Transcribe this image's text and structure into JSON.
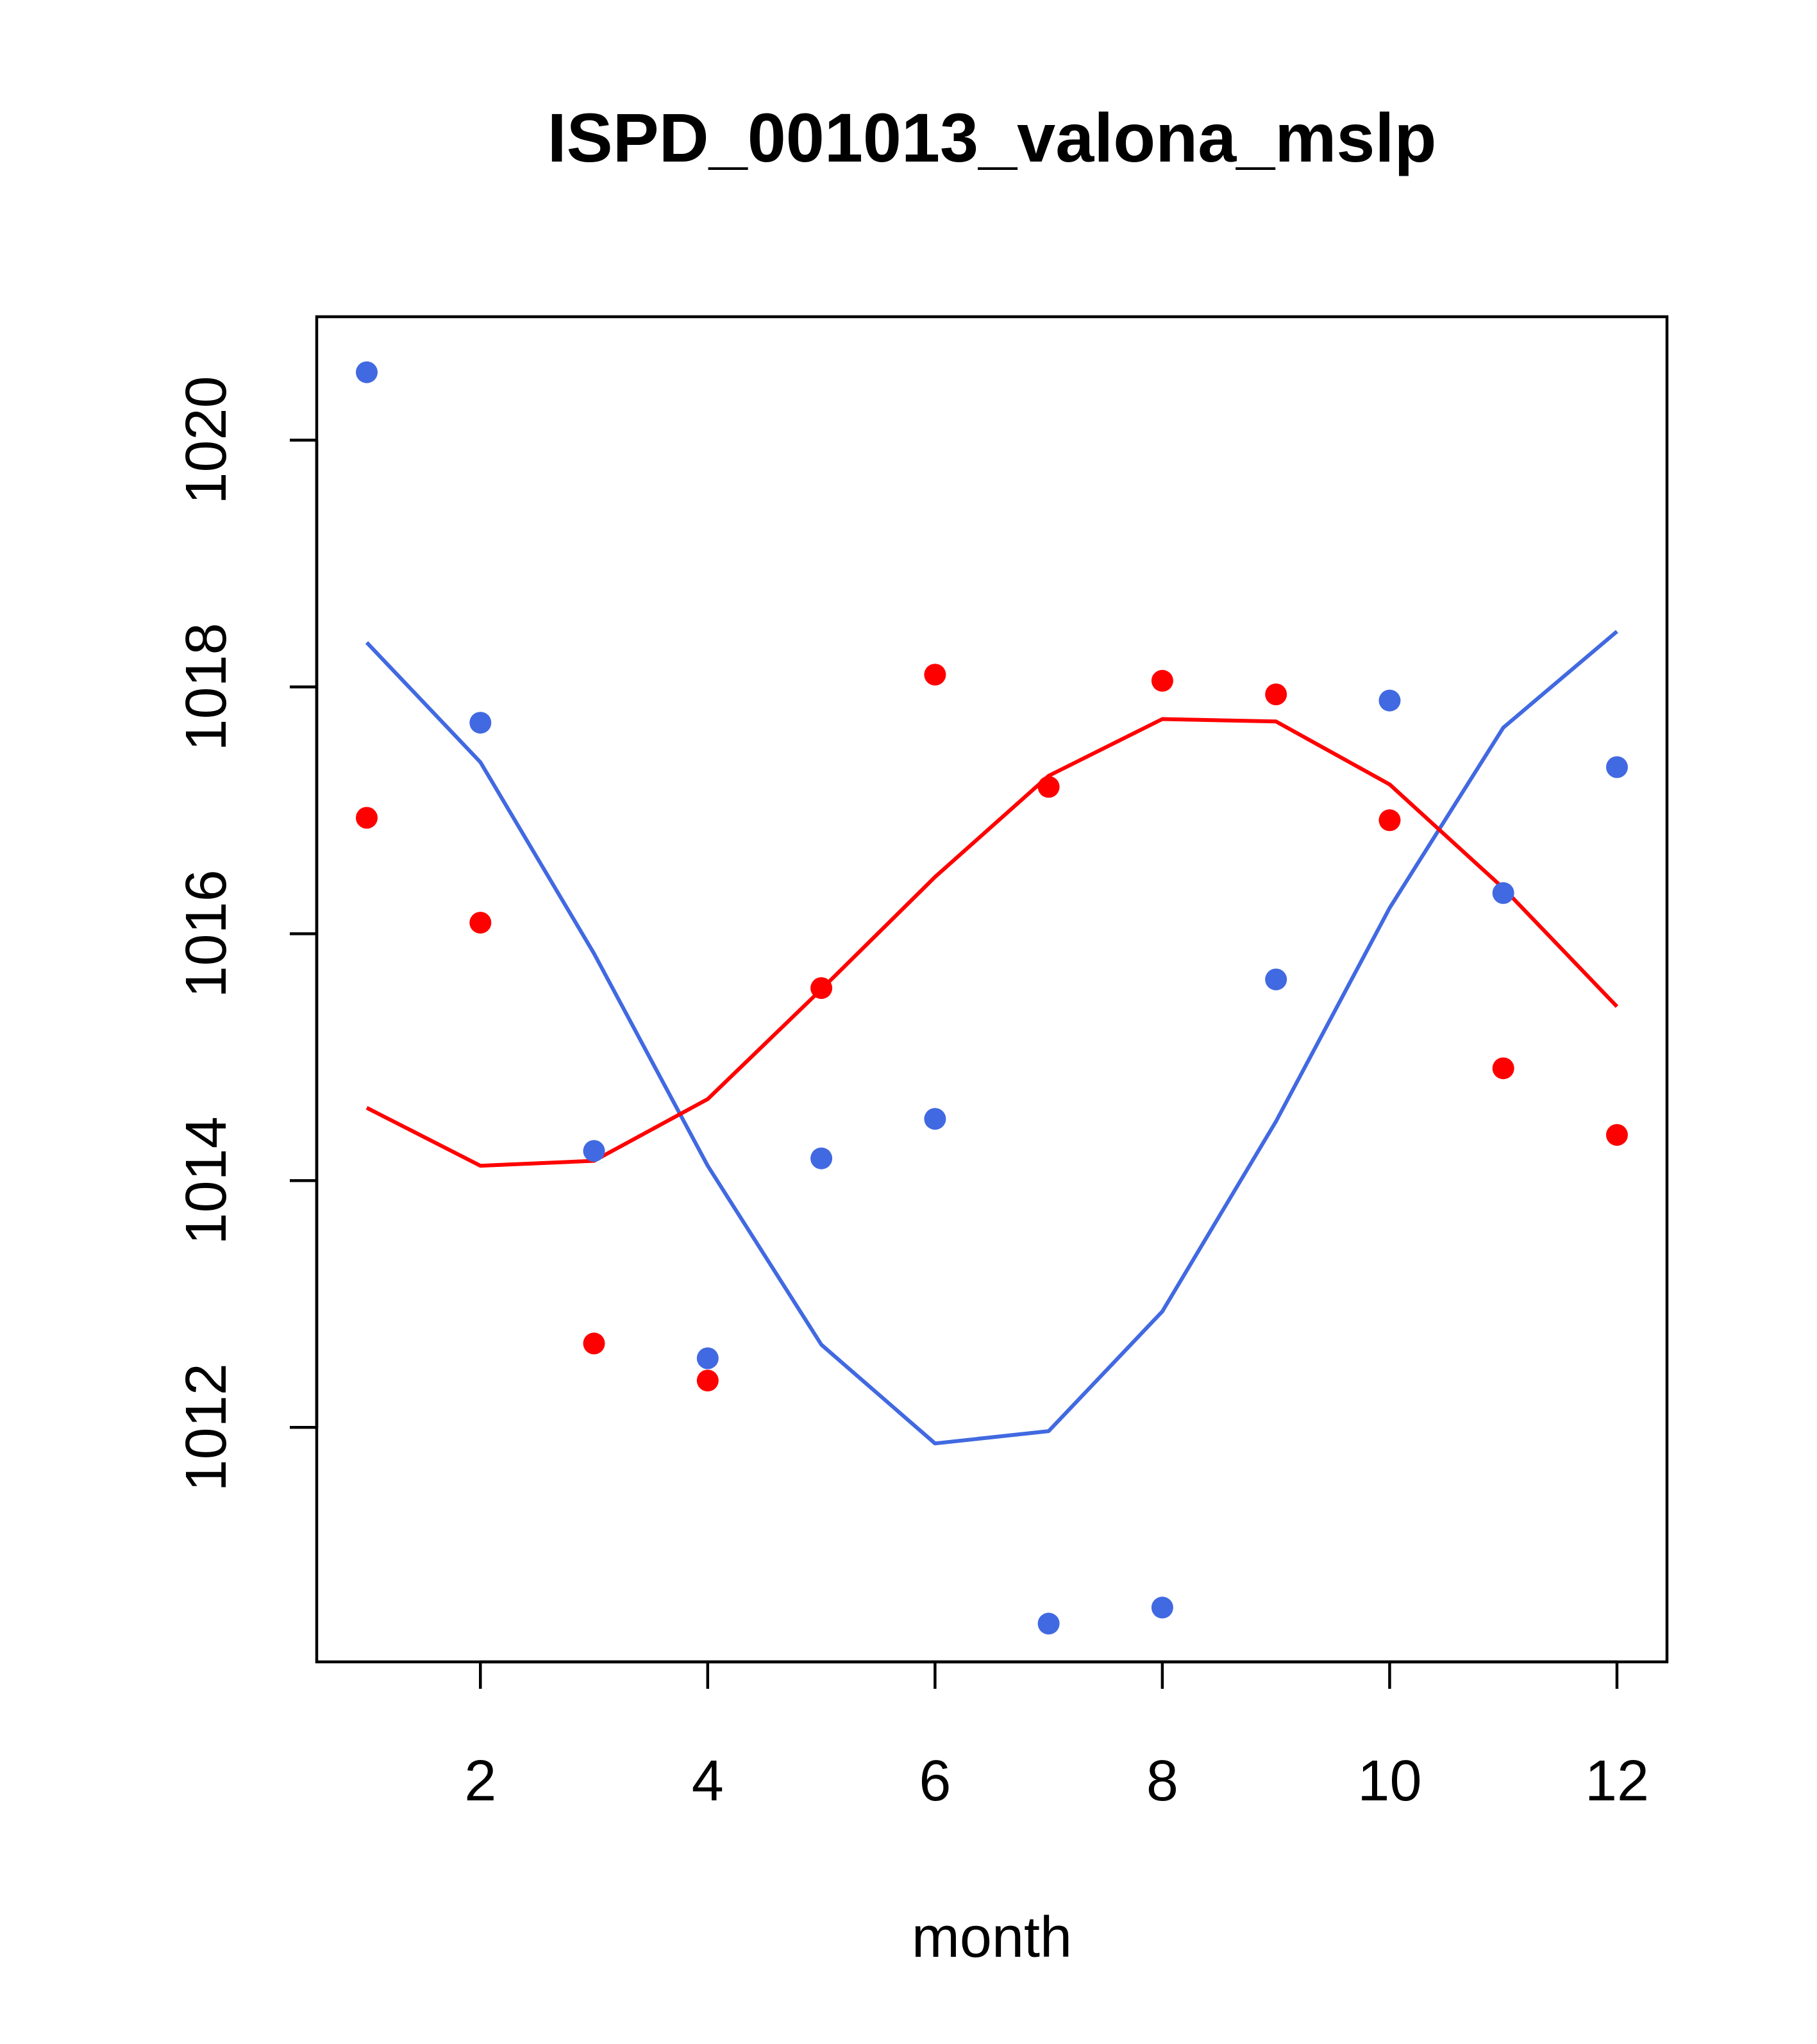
{
  "chart_data": {
    "type": "scatter",
    "title": "ISPD_001013_valona_mslp",
    "xlabel": "month",
    "ylabel": "",
    "xlim": [
      0.56,
      12.44
    ],
    "ylim": [
      1010.1,
      1021.0
    ],
    "xticks": [
      2,
      4,
      6,
      8,
      10,
      12
    ],
    "xtick_labels": [
      "2",
      "4",
      "6",
      "8",
      "10",
      "12"
    ],
    "yticks": [
      1012,
      1014,
      1016,
      1018,
      1020
    ],
    "ytick_labels": [
      "1012",
      "1014",
      "1016",
      "1018",
      "1020"
    ],
    "grid": false,
    "legend": null,
    "series": [
      {
        "name": "blue points",
        "kind": "points",
        "color": "#4169E1",
        "x": [
          1,
          2,
          3,
          4,
          5,
          6,
          7,
          8,
          9,
          10,
          11,
          12
        ],
        "values": [
          1020.55,
          1017.71,
          1014.24,
          1012.56,
          1014.18,
          1014.5,
          1010.41,
          1010.54,
          1015.63,
          1017.89,
          1016.33,
          1017.35
        ]
      },
      {
        "name": "red points",
        "kind": "points",
        "color": "#FF0000",
        "x": [
          1,
          2,
          3,
          4,
          5,
          6,
          7,
          8,
          9,
          10,
          11,
          12
        ],
        "values": [
          1016.94,
          1016.09,
          1012.68,
          1012.38,
          1015.56,
          1018.1,
          1017.19,
          1018.05,
          1017.94,
          1016.92,
          1014.91,
          1014.37
        ]
      },
      {
        "name": "blue line",
        "kind": "line",
        "color": "#4169E1",
        "x": [
          1,
          2,
          3,
          4,
          5,
          6,
          7,
          8,
          9,
          10,
          11,
          12
        ],
        "values": [
          1018.36,
          1017.39,
          1015.84,
          1014.12,
          1012.67,
          1011.87,
          1011.97,
          1012.94,
          1014.48,
          1016.21,
          1017.67,
          1018.45
        ]
      },
      {
        "name": "red line",
        "kind": "line",
        "color": "#FF0000",
        "x": [
          1,
          2,
          3,
          4,
          5,
          6,
          7,
          8,
          9,
          10,
          11,
          12
        ],
        "values": [
          1014.59,
          1014.12,
          1014.16,
          1014.66,
          1015.55,
          1016.46,
          1017.28,
          1017.74,
          1017.72,
          1017.21,
          1016.37,
          1015.41
        ]
      }
    ]
  }
}
